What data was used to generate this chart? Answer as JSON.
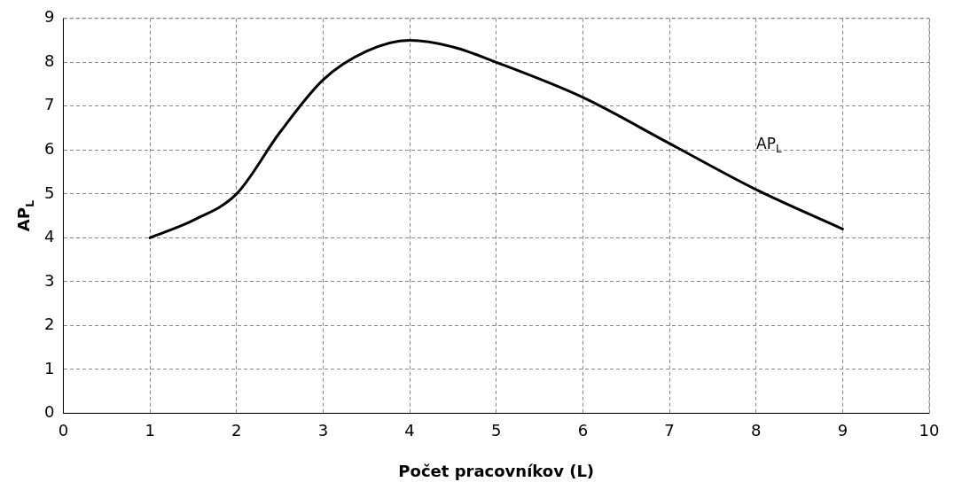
{
  "chart_data": {
    "type": "line",
    "xlabel": "Počet pracovníkov (L)",
    "ylabel": "AP$_{L}$",
    "series": [
      {
        "color": "#000000",
        "x": [
          1,
          1.5,
          2,
          2.5,
          3,
          3.5,
          4,
          4.5,
          5,
          6,
          7,
          8,
          9
        ],
        "values": [
          4,
          4.4,
          5,
          6.4,
          7.6,
          8.25,
          8.5,
          8.35,
          8,
          7.2,
          6.15,
          5.1,
          4.2
        ]
      }
    ],
    "xlim": [
      0,
      10
    ],
    "xticks": [
      0,
      1,
      2,
      3,
      4,
      5,
      6,
      7,
      8,
      9,
      10
    ],
    "ylim": [
      0,
      9
    ],
    "yticks": [
      0,
      1,
      2,
      3,
      4,
      5,
      6,
      7,
      8,
      9
    ],
    "grid": true,
    "line_style": "solid",
    "marker": "none",
    "legend": false,
    "annotations": [
      "AP$_{L}$"
    ]
  }
}
